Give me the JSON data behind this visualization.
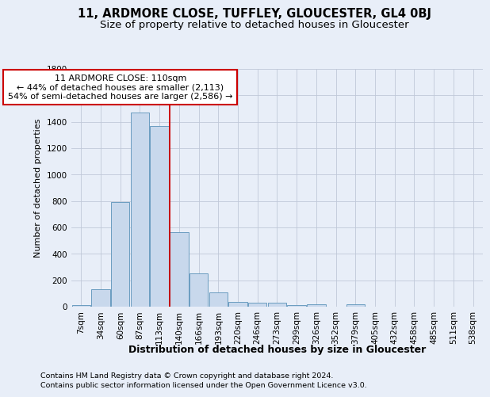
{
  "title": "11, ARDMORE CLOSE, TUFFLEY, GLOUCESTER, GL4 0BJ",
  "subtitle": "Size of property relative to detached houses in Gloucester",
  "xlabel": "Distribution of detached houses by size in Gloucester",
  "ylabel": "Number of detached properties",
  "categories": [
    "7sqm",
    "34sqm",
    "60sqm",
    "87sqm",
    "113sqm",
    "140sqm",
    "166sqm",
    "193sqm",
    "220sqm",
    "246sqm",
    "273sqm",
    "299sqm",
    "326sqm",
    "352sqm",
    "379sqm",
    "405sqm",
    "432sqm",
    "458sqm",
    "485sqm",
    "511sqm",
    "538sqm"
  ],
  "values": [
    10,
    130,
    790,
    1470,
    1370,
    565,
    250,
    110,
    35,
    30,
    30,
    15,
    20,
    0,
    20,
    0,
    0,
    0,
    0,
    0,
    0
  ],
  "bar_color": "#c8d8ec",
  "bar_edge_color": "#6a9cc0",
  "bar_edge_width": 0.7,
  "grid_color": "#c0c8d8",
  "background_color": "#e8eef8",
  "property_line_x": 4.5,
  "property_line_color": "#cc0000",
  "annotation_text": "11 ARDMORE CLOSE: 110sqm\n← 44% of detached houses are smaller (2,113)\n54% of semi-detached houses are larger (2,586) →",
  "annotation_box_color": "#ffffff",
  "annotation_box_edge_color": "#cc0000",
  "ylim": [
    0,
    1800
  ],
  "yticks": [
    0,
    200,
    400,
    600,
    800,
    1000,
    1200,
    1400,
    1600,
    1800
  ],
  "footnote1": "Contains HM Land Registry data © Crown copyright and database right 2024.",
  "footnote2": "Contains public sector information licensed under the Open Government Licence v3.0.",
  "title_fontsize": 10.5,
  "subtitle_fontsize": 9.5,
  "xlabel_fontsize": 9,
  "ylabel_fontsize": 8,
  "tick_fontsize": 7.5,
  "annotation_fontsize": 8,
  "footnote_fontsize": 6.8
}
